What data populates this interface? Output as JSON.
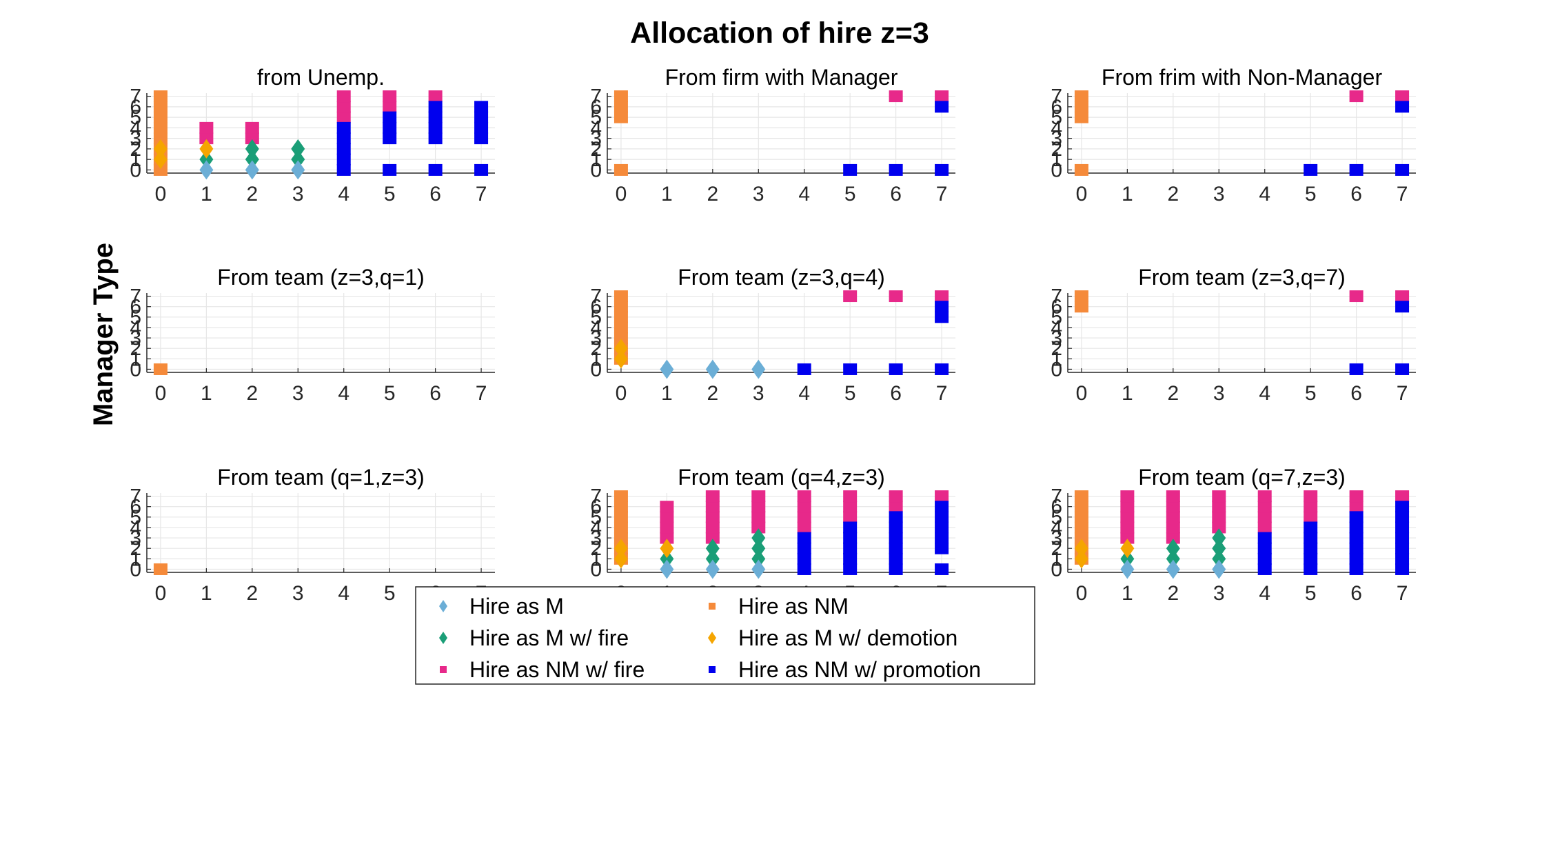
{
  "chart_data": {
    "type": "scatter",
    "title": "Allocation of hire z=3",
    "ylabel": "Manager Type",
    "xlim": [
      -0.3,
      7.3
    ],
    "ylim": [
      -0.3,
      7.3
    ],
    "xticks": [
      0,
      1,
      2,
      3,
      4,
      5,
      6,
      7
    ],
    "yticks": [
      0,
      1,
      2,
      3,
      4,
      5,
      6,
      7
    ],
    "grid": true,
    "legend": {
      "placement": "bottom-center",
      "entries": [
        {
          "key": "M",
          "label": "Hire as M",
          "marker": "diamond",
          "color": "#6baed6"
        },
        {
          "key": "Mfire",
          "label": "Hire as M w/ fire",
          "marker": "diamond",
          "color": "#1a9e77"
        },
        {
          "key": "NMfire",
          "label": "Hire as NM w/ fire",
          "marker": "square",
          "color": "#e7298a"
        },
        {
          "key": "NM",
          "label": "Hire as NM",
          "marker": "square",
          "color": "#f58a3a"
        },
        {
          "key": "Mdem",
          "label": "Hire as M w/ demotion",
          "marker": "diamond",
          "color": "#f5a500"
        },
        {
          "key": "NMpro",
          "label": "Hire as NM w/ promotion",
          "marker": "square",
          "color": "#0000ee"
        }
      ]
    },
    "panels": [
      {
        "title": "from Unemp.",
        "points": {
          "NM": [
            [
              0,
              0
            ],
            [
              0,
              1
            ],
            [
              0,
              2
            ],
            [
              0,
              3
            ],
            [
              0,
              4
            ],
            [
              0,
              5
            ],
            [
              0,
              6
            ],
            [
              0,
              7
            ]
          ],
          "Mdem": [
            [
              0,
              1
            ],
            [
              0,
              2
            ],
            [
              1,
              2
            ]
          ],
          "M": [
            [
              1,
              0
            ],
            [
              2,
              0
            ],
            [
              3,
              0
            ]
          ],
          "Mfire": [
            [
              1,
              1
            ],
            [
              2,
              1
            ],
            [
              2,
              2
            ],
            [
              3,
              1
            ],
            [
              3,
              2
            ]
          ],
          "NMfire": [
            [
              1,
              3
            ],
            [
              1,
              4
            ],
            [
              2,
              3
            ],
            [
              2,
              4
            ],
            [
              4,
              5
            ],
            [
              4,
              6
            ],
            [
              4,
              7
            ],
            [
              5,
              6
            ],
            [
              5,
              7
            ],
            [
              6,
              7
            ]
          ],
          "NMpro": [
            [
              4,
              0
            ],
            [
              4,
              1
            ],
            [
              4,
              2
            ],
            [
              4,
              3
            ],
            [
              4,
              4
            ],
            [
              5,
              0
            ],
            [
              5,
              3
            ],
            [
              5,
              4
            ],
            [
              5,
              5
            ],
            [
              6,
              0
            ],
            [
              6,
              3
            ],
            [
              6,
              4
            ],
            [
              6,
              5
            ],
            [
              6,
              6
            ],
            [
              7,
              0
            ],
            [
              7,
              3
            ],
            [
              7,
              4
            ],
            [
              7,
              5
            ],
            [
              7,
              6
            ]
          ]
        }
      },
      {
        "title": "From firm with Manager",
        "points": {
          "NM": [
            [
              0,
              0
            ],
            [
              0,
              5
            ],
            [
              0,
              6
            ],
            [
              0,
              7
            ]
          ],
          "NMfire": [
            [
              6,
              7
            ],
            [
              7,
              7
            ]
          ],
          "NMpro": [
            [
              5,
              0
            ],
            [
              6,
              0
            ],
            [
              7,
              0
            ],
            [
              7,
              6
            ]
          ]
        }
      },
      {
        "title": "From frim with Non-Manager",
        "points": {
          "NM": [
            [
              0,
              0
            ],
            [
              0,
              5
            ],
            [
              0,
              6
            ],
            [
              0,
              7
            ]
          ],
          "NMfire": [
            [
              6,
              7
            ],
            [
              7,
              7
            ]
          ],
          "NMpro": [
            [
              5,
              0
            ],
            [
              6,
              0
            ],
            [
              7,
              0
            ],
            [
              7,
              6
            ]
          ]
        }
      },
      {
        "title": "From team (z=3,q=1)",
        "points": {
          "NM": [
            [
              0,
              0
            ]
          ]
        }
      },
      {
        "title": "From team (z=3,q=4)",
        "points": {
          "NM": [
            [
              0,
              1
            ],
            [
              0,
              2
            ],
            [
              0,
              3
            ],
            [
              0,
              4
            ],
            [
              0,
              5
            ],
            [
              0,
              6
            ],
            [
              0,
              7
            ]
          ],
          "Mdem": [
            [
              0,
              1
            ],
            [
              0,
              2
            ]
          ],
          "M": [
            [
              1,
              0
            ],
            [
              2,
              0
            ],
            [
              3,
              0
            ]
          ],
          "NMfire": [
            [
              5,
              7
            ],
            [
              6,
              7
            ],
            [
              7,
              7
            ]
          ],
          "NMpro": [
            [
              4,
              0
            ],
            [
              5,
              0
            ],
            [
              6,
              0
            ],
            [
              7,
              0
            ],
            [
              7,
              5
            ],
            [
              7,
              6
            ]
          ]
        }
      },
      {
        "title": "From team (z=3,q=7)",
        "points": {
          "NM": [
            [
              0,
              6
            ],
            [
              0,
              7
            ]
          ],
          "NMfire": [
            [
              6,
              7
            ],
            [
              7,
              7
            ]
          ],
          "NMpro": [
            [
              6,
              0
            ],
            [
              7,
              0
            ],
            [
              7,
              6
            ]
          ]
        }
      },
      {
        "title": "From team (q=1,z=3)",
        "points": {
          "NM": [
            [
              0,
              0
            ]
          ]
        }
      },
      {
        "title": "From team (q=4,z=3)",
        "points": {
          "NM": [
            [
              0,
              1
            ],
            [
              0,
              2
            ],
            [
              0,
              3
            ],
            [
              0,
              4
            ],
            [
              0,
              5
            ],
            [
              0,
              6
            ],
            [
              0,
              7
            ]
          ],
          "Mdem": [
            [
              0,
              1
            ],
            [
              0,
              2
            ],
            [
              1,
              2
            ]
          ],
          "M": [
            [
              1,
              0
            ],
            [
              2,
              0
            ],
            [
              3,
              0
            ]
          ],
          "Mfire": [
            [
              1,
              1
            ],
            [
              2,
              1
            ],
            [
              2,
              2
            ],
            [
              3,
              1
            ],
            [
              3,
              2
            ],
            [
              3,
              3
            ]
          ],
          "NMfire": [
            [
              1,
              3
            ],
            [
              1,
              4
            ],
            [
              1,
              5
            ],
            [
              1,
              6
            ],
            [
              2,
              3
            ],
            [
              2,
              4
            ],
            [
              2,
              5
            ],
            [
              2,
              6
            ],
            [
              2,
              7
            ],
            [
              3,
              4
            ],
            [
              3,
              5
            ],
            [
              3,
              6
            ],
            [
              3,
              7
            ],
            [
              4,
              4
            ],
            [
              4,
              5
            ],
            [
              4,
              6
            ],
            [
              4,
              7
            ],
            [
              5,
              5
            ],
            [
              5,
              6
            ],
            [
              5,
              7
            ],
            [
              6,
              6
            ],
            [
              6,
              7
            ],
            [
              7,
              7
            ]
          ],
          "NMpro": [
            [
              4,
              0
            ],
            [
              4,
              1
            ],
            [
              4,
              2
            ],
            [
              4,
              3
            ],
            [
              5,
              0
            ],
            [
              5,
              1
            ],
            [
              5,
              2
            ],
            [
              5,
              3
            ],
            [
              5,
              4
            ],
            [
              6,
              0
            ],
            [
              6,
              1
            ],
            [
              6,
              2
            ],
            [
              6,
              3
            ],
            [
              6,
              4
            ],
            [
              6,
              5
            ],
            [
              7,
              0
            ],
            [
              7,
              2
            ],
            [
              7,
              3
            ],
            [
              7,
              4
            ],
            [
              7,
              5
            ],
            [
              7,
              6
            ]
          ]
        }
      },
      {
        "title": "From team (q=7,z=3)",
        "points": {
          "NM": [
            [
              0,
              1
            ],
            [
              0,
              2
            ],
            [
              0,
              3
            ],
            [
              0,
              4
            ],
            [
              0,
              5
            ],
            [
              0,
              6
            ],
            [
              0,
              7
            ]
          ],
          "Mdem": [
            [
              0,
              1
            ],
            [
              0,
              2
            ],
            [
              1,
              2
            ]
          ],
          "M": [
            [
              1,
              0
            ],
            [
              2,
              0
            ],
            [
              3,
              0
            ]
          ],
          "Mfire": [
            [
              1,
              1
            ],
            [
              2,
              1
            ],
            [
              2,
              2
            ],
            [
              3,
              1
            ],
            [
              3,
              2
            ],
            [
              3,
              3
            ]
          ],
          "NMfire": [
            [
              1,
              3
            ],
            [
              1,
              4
            ],
            [
              1,
              5
            ],
            [
              1,
              6
            ],
            [
              1,
              7
            ],
            [
              2,
              3
            ],
            [
              2,
              4
            ],
            [
              2,
              5
            ],
            [
              2,
              6
            ],
            [
              2,
              7
            ],
            [
              3,
              4
            ],
            [
              3,
              5
            ],
            [
              3,
              6
            ],
            [
              3,
              7
            ],
            [
              4,
              4
            ],
            [
              4,
              5
            ],
            [
              4,
              6
            ],
            [
              4,
              7
            ],
            [
              5,
              5
            ],
            [
              5,
              6
            ],
            [
              5,
              7
            ],
            [
              6,
              6
            ],
            [
              6,
              7
            ],
            [
              7,
              7
            ]
          ],
          "NMpro": [
            [
              4,
              0
            ],
            [
              4,
              1
            ],
            [
              4,
              2
            ],
            [
              4,
              3
            ],
            [
              5,
              0
            ],
            [
              5,
              1
            ],
            [
              5,
              2
            ],
            [
              5,
              3
            ],
            [
              5,
              4
            ],
            [
              6,
              0
            ],
            [
              6,
              1
            ],
            [
              6,
              2
            ],
            [
              6,
              3
            ],
            [
              6,
              4
            ],
            [
              6,
              5
            ],
            [
              7,
              0
            ],
            [
              7,
              1
            ],
            [
              7,
              2
            ],
            [
              7,
              3
            ],
            [
              7,
              4
            ],
            [
              7,
              5
            ],
            [
              7,
              6
            ]
          ]
        }
      }
    ]
  }
}
